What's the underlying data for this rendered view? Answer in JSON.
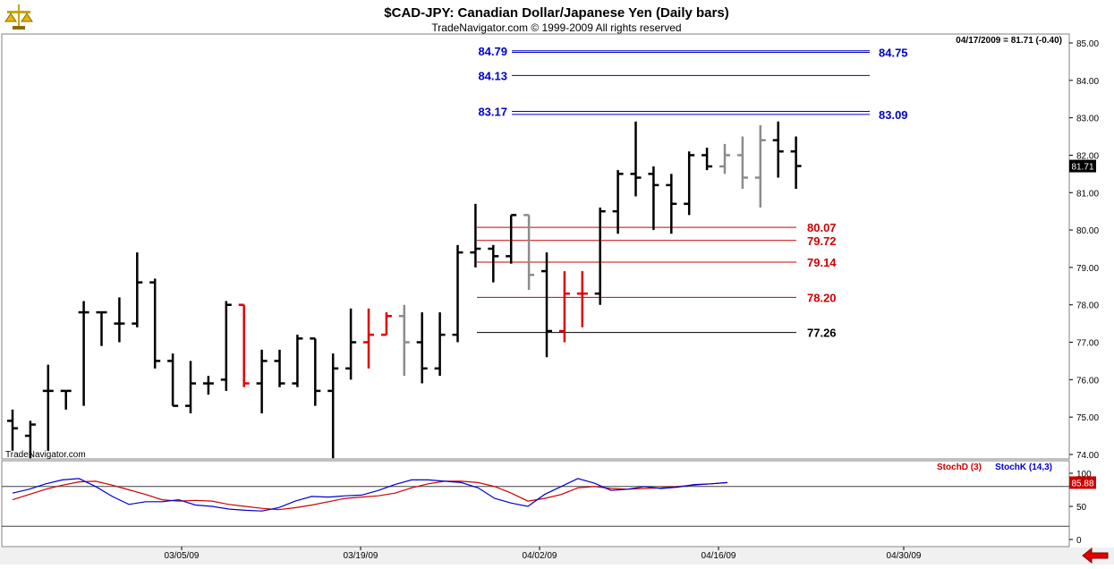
{
  "header": {
    "title": "$CAD-JPY:  Canadian Dollar/Japanese Yen  (Daily bars)",
    "subtitle": "TradeNavigator.com © 1999-2009 All rights reserved",
    "quote": "04/17/2009 = 81.71 (-0.40)",
    "watermark": "TradeNavigator.com",
    "logo_icon": "scale-logo-icon",
    "back_icon": "red-left-arrow-icon"
  },
  "colors": {
    "up_bar": "#000000",
    "red_bar": "#e00000",
    "gray_bar": "#8c8c8c",
    "blue_level": "#0000cc",
    "red_level": "#cc0000",
    "stochD": "#cc0000",
    "stochK": "#0000cc"
  },
  "chart_data": [
    {
      "type": "ohlc",
      "ylim": [
        74.0,
        85.0
      ],
      "y_ticks": [
        "85.00",
        "84.00",
        "83.00",
        "82.00",
        "81.00",
        "80.00",
        "79.00",
        "78.00",
        "77.00",
        "76.00",
        "75.00",
        "74.00"
      ],
      "x_ticks": [
        "03/05/09",
        "03/19/09",
        "04/02/09",
        "04/16/09",
        "04/30/09"
      ],
      "last_price_label": "81.71",
      "last_price": 81.71,
      "bars": [
        {
          "o": 74.9,
          "h": 75.2,
          "l": 74.1,
          "c": 74.7,
          "color": "black"
        },
        {
          "o": 74.5,
          "h": 74.9,
          "l": 73.9,
          "c": 74.8,
          "color": "black"
        },
        {
          "o": 75.7,
          "h": 76.4,
          "l": 74.1,
          "c": 75.7,
          "color": "black"
        },
        {
          "o": 75.7,
          "h": 75.7,
          "l": 75.2,
          "c": 75.7,
          "color": "black"
        },
        {
          "o": 77.8,
          "h": 78.1,
          "l": 75.3,
          "c": 77.8,
          "color": "black"
        },
        {
          "o": 77.8,
          "h": 77.8,
          "l": 76.9,
          "c": 77.8,
          "color": "black"
        },
        {
          "o": 77.5,
          "h": 78.2,
          "l": 77.0,
          "c": 77.5,
          "color": "black"
        },
        {
          "o": 77.5,
          "h": 79.4,
          "l": 77.4,
          "c": 78.6,
          "color": "black"
        },
        {
          "o": 78.6,
          "h": 78.7,
          "l": 76.3,
          "c": 76.5,
          "color": "black"
        },
        {
          "o": 76.5,
          "h": 76.7,
          "l": 75.3,
          "c": 75.3,
          "color": "black"
        },
        {
          "o": 75.3,
          "h": 76.5,
          "l": 75.1,
          "c": 75.9,
          "color": "black"
        },
        {
          "o": 75.9,
          "h": 76.1,
          "l": 75.6,
          "c": 75.9,
          "color": "black"
        },
        {
          "o": 76.0,
          "h": 78.1,
          "l": 75.7,
          "c": 78.0,
          "color": "black"
        },
        {
          "o": 78.0,
          "h": 78.0,
          "l": 75.8,
          "c": 75.9,
          "color": "red"
        },
        {
          "o": 75.9,
          "h": 76.8,
          "l": 75.1,
          "c": 76.5,
          "color": "black"
        },
        {
          "o": 76.5,
          "h": 76.8,
          "l": 75.8,
          "c": 75.9,
          "color": "black"
        },
        {
          "o": 75.9,
          "h": 77.2,
          "l": 75.8,
          "c": 77.1,
          "color": "black"
        },
        {
          "o": 77.1,
          "h": 77.1,
          "l": 75.3,
          "c": 75.7,
          "color": "black"
        },
        {
          "o": 75.7,
          "h": 76.7,
          "l": 73.9,
          "c": 76.3,
          "color": "black"
        },
        {
          "o": 76.3,
          "h": 77.9,
          "l": 76.0,
          "c": 77.0,
          "color": "black"
        },
        {
          "o": 77.0,
          "h": 77.9,
          "l": 76.3,
          "c": 77.2,
          "color": "red"
        },
        {
          "o": 77.2,
          "h": 77.8,
          "l": 77.2,
          "c": 77.7,
          "color": "red"
        },
        {
          "o": 77.7,
          "h": 78.0,
          "l": 76.1,
          "c": 77.0,
          "color": "gray"
        },
        {
          "o": 77.0,
          "h": 77.8,
          "l": 75.9,
          "c": 76.3,
          "color": "black"
        },
        {
          "o": 76.3,
          "h": 77.8,
          "l": 76.1,
          "c": 77.2,
          "color": "black"
        },
        {
          "o": 77.2,
          "h": 79.6,
          "l": 77.0,
          "c": 79.4,
          "color": "black"
        },
        {
          "o": 79.4,
          "h": 80.7,
          "l": 79.0,
          "c": 79.5,
          "color": "black"
        },
        {
          "o": 79.5,
          "h": 79.6,
          "l": 78.6,
          "c": 79.3,
          "color": "black"
        },
        {
          "o": 79.3,
          "h": 80.4,
          "l": 79.1,
          "c": 80.4,
          "color": "black"
        },
        {
          "o": 80.4,
          "h": 80.4,
          "l": 78.4,
          "c": 78.8,
          "color": "gray"
        },
        {
          "o": 78.9,
          "h": 79.4,
          "l": 76.6,
          "c": 77.3,
          "color": "black"
        },
        {
          "o": 77.3,
          "h": 78.9,
          "l": 77.0,
          "c": 78.3,
          "color": "red"
        },
        {
          "o": 78.3,
          "h": 78.9,
          "l": 77.4,
          "c": 78.3,
          "color": "red"
        },
        {
          "o": 78.3,
          "h": 80.6,
          "l": 78.0,
          "c": 80.5,
          "color": "black"
        },
        {
          "o": 80.5,
          "h": 81.6,
          "l": 79.9,
          "c": 81.5,
          "color": "black"
        },
        {
          "o": 81.5,
          "h": 82.9,
          "l": 80.9,
          "c": 81.4,
          "color": "black"
        },
        {
          "o": 81.5,
          "h": 81.7,
          "l": 80.0,
          "c": 81.2,
          "color": "black"
        },
        {
          "o": 81.2,
          "h": 81.5,
          "l": 79.9,
          "c": 80.7,
          "color": "black"
        },
        {
          "o": 80.7,
          "h": 82.1,
          "l": 80.4,
          "c": 82.0,
          "color": "black"
        },
        {
          "o": 82.0,
          "h": 82.2,
          "l": 81.6,
          "c": 81.7,
          "color": "black"
        },
        {
          "o": 81.7,
          "h": 82.3,
          "l": 81.5,
          "c": 82.0,
          "color": "gray"
        },
        {
          "o": 82.0,
          "h": 82.5,
          "l": 81.1,
          "c": 81.4,
          "color": "gray"
        },
        {
          "o": 81.4,
          "h": 82.8,
          "l": 80.6,
          "c": 82.4,
          "color": "gray"
        },
        {
          "o": 82.4,
          "h": 82.9,
          "l": 81.4,
          "c": 82.1,
          "color": "black"
        },
        {
          "o": 82.1,
          "h": 82.5,
          "l": 81.1,
          "c": 81.71,
          "color": "black"
        }
      ],
      "levels": [
        {
          "value": 84.79,
          "label": "84.79",
          "color": "#0000cc",
          "side": "left"
        },
        {
          "value": 84.75,
          "label": "84.75",
          "color": "#0000cc",
          "side": "right"
        },
        {
          "value": 84.13,
          "label": "84.13",
          "color": "#0000cc",
          "side": "left"
        },
        {
          "value": 83.17,
          "label": "83.17",
          "color": "#0000cc",
          "side": "left"
        },
        {
          "value": 83.09,
          "label": "83.09",
          "color": "#0000cc",
          "side": "right"
        },
        {
          "value": 80.07,
          "label": "80.07",
          "color": "#cc0000",
          "side": "right"
        },
        {
          "value": 79.72,
          "label": "79.72",
          "color": "#cc0000",
          "side": "right"
        },
        {
          "value": 79.14,
          "label": "79.14",
          "color": "#cc0000",
          "side": "right"
        },
        {
          "value": 78.2,
          "label": "78.20",
          "color": "#cc0000",
          "side": "right"
        },
        {
          "value": 77.26,
          "label": "77.26",
          "color": "#000000",
          "side": "right"
        }
      ]
    },
    {
      "type": "line",
      "ylim": [
        0,
        100
      ],
      "y_ticks": [
        "100",
        "50",
        "0"
      ],
      "reference_lines": [
        80,
        20
      ],
      "last_value_label": "85.88",
      "last_value": 85.88,
      "series": [
        {
          "name": "StochD (3)",
          "color": "#cc0000",
          "values": [
            60,
            68,
            76,
            82,
            87,
            88,
            82,
            75,
            68,
            60,
            58,
            59,
            58,
            53,
            50,
            47,
            45,
            48,
            52,
            57,
            62,
            64,
            66,
            70,
            78,
            84,
            88,
            88,
            86,
            80,
            70,
            58,
            62,
            68,
            78,
            80,
            77,
            76,
            77,
            78,
            80,
            82,
            84,
            86
          ]
        },
        {
          "name": "StochK (14,3)",
          "color": "#0000cc",
          "values": [
            70,
            76,
            84,
            90,
            92,
            80,
            65,
            53,
            57,
            57,
            60,
            52,
            50,
            46,
            44,
            43,
            48,
            58,
            65,
            64,
            66,
            67,
            74,
            83,
            90,
            90,
            88,
            86,
            78,
            62,
            55,
            50,
            68,
            80,
            92,
            85,
            74,
            76,
            80,
            77,
            79,
            83,
            84,
            86
          ]
        }
      ]
    }
  ]
}
